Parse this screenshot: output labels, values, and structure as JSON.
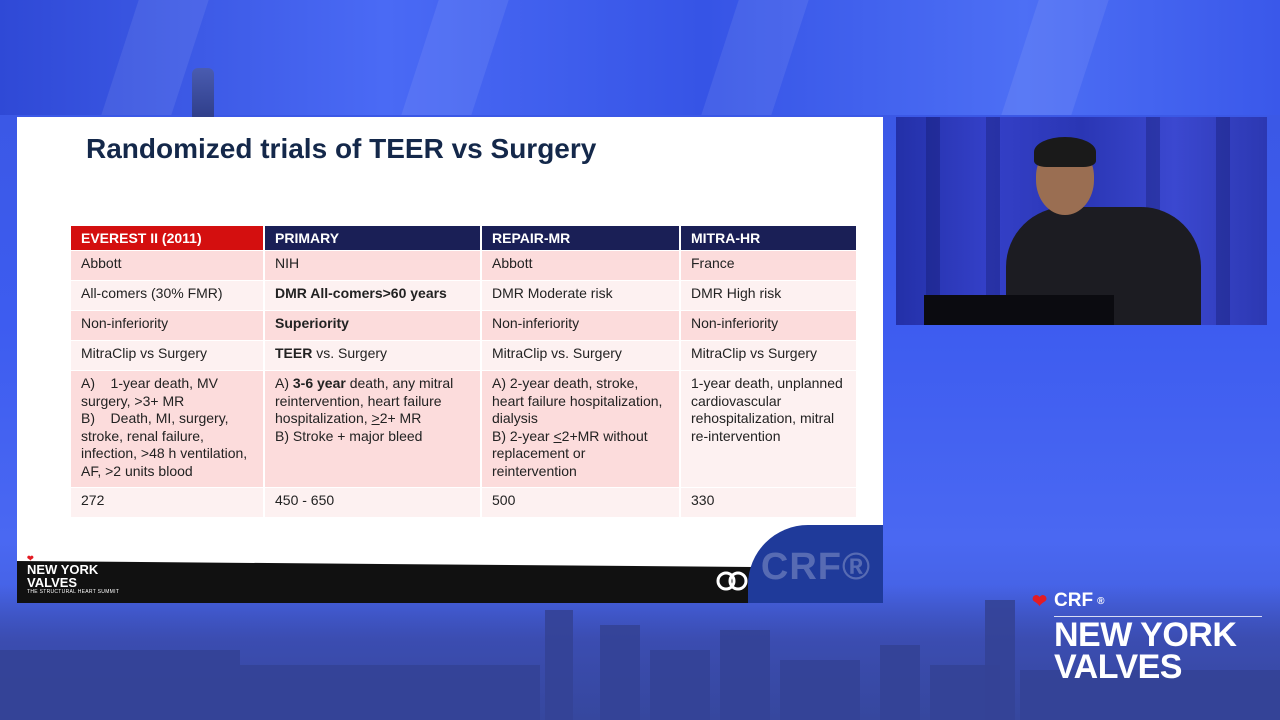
{
  "slide": {
    "title": "Randomized trials of TEER vs Surgery",
    "table": {
      "headers": [
        "EVEREST II (2011)",
        "PRIMARY",
        "REPAIR-MR",
        "MITRA-HR"
      ],
      "sponsor": [
        "Abbott",
        "NIH",
        "Abbott",
        "France"
      ],
      "population": [
        "All-comers (30% FMR)",
        "DMR All-comers>60 years",
        "DMR Moderate risk",
        "DMR High risk"
      ],
      "design": [
        "Non-inferiority",
        "Superiority",
        "Non-inferiority",
        "Non-inferiority"
      ],
      "comparison": {
        "everest": "MitraClip vs Surgery",
        "primary_bold": "TEER",
        "primary_rest": " vs. Surgery",
        "repair": "MitraClip vs. Surgery",
        "mitra": "MitraClip vs Surgery"
      },
      "endpoints": {
        "everest_a": "A)    1-year death, MV surgery, >3+ MR",
        "everest_b": "B)    Death, MI, surgery, stroke, renal failure, infection, >48 h ventilation, AF, >2 units blood",
        "primary_a_prefix": "A) ",
        "primary_a_bold": "3-6 year",
        "primary_a_mid": " death, any mitral reintervention, heart failure hospitalization, ",
        "primary_a_under": ">",
        "primary_a_end": "2+ MR",
        "primary_b": "B) Stroke + major bleed",
        "repair_a": "A) 2-year death, stroke, heart failure hospitalization, dialysis",
        "repair_b_prefix": "B) 2-year ",
        "repair_b_under": "<",
        "repair_b_end": "2+MR without replacement or reintervention",
        "mitra": "1-year death, unplanned cardiovascular rehospitalization, mitral re-intervention"
      },
      "sample_size": [
        "272",
        "450 - 650",
        "500",
        "330"
      ]
    },
    "footer": {
      "crf_small": "CRF®",
      "ny_line1": "NEW YORK",
      "ny_line2": "VALVES",
      "tagline": "THE STRUCTURAL HEART SUMMIT",
      "watermark": "CRF®"
    }
  },
  "brand": {
    "crf": "CRF",
    "reg": "®",
    "line1": "NEW YORK",
    "line2": "VALVES"
  },
  "colors": {
    "header_red": "#d40f0f",
    "header_navy": "#1a1f56",
    "row_pink": "#fcdcdc",
    "row_pale": "#fdf1f1"
  }
}
